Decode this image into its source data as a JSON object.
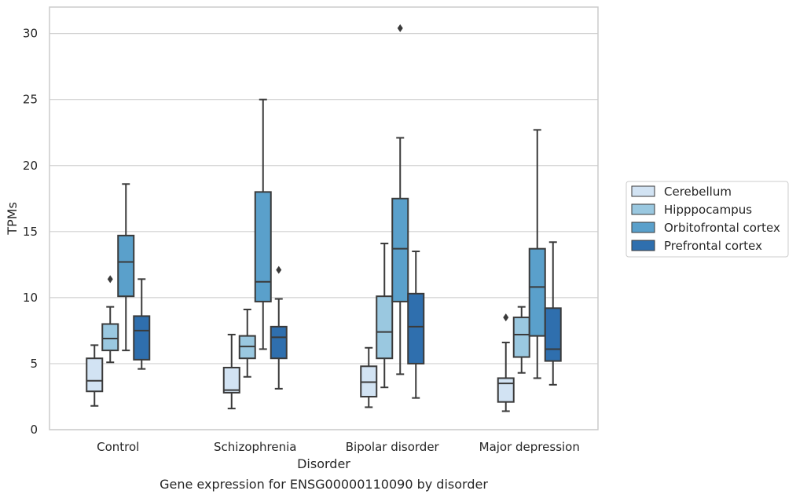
{
  "caption": "Gene expression for ENSG00000110090 by disorder",
  "chart_data": {
    "type": "boxplot",
    "xlabel": "Disorder",
    "ylabel": "TPMs",
    "ylim": [
      0,
      32
    ],
    "yticks": [
      0,
      5,
      10,
      15,
      20,
      25,
      30
    ],
    "grid": "horizontal",
    "legend_position": "right",
    "categories": [
      "Control",
      "Schizophrenia",
      "Bipolar disorder",
      "Major depression"
    ],
    "series": [
      {
        "name": "Cerebellum",
        "color": "#d2e3f3",
        "boxes": [
          {
            "whisker_low": 1.8,
            "q1": 2.9,
            "median": 3.7,
            "q3": 5.4,
            "whisker_high": 6.4,
            "outliers": []
          },
          {
            "whisker_low": 1.6,
            "q1": 2.8,
            "median": 3.0,
            "q3": 4.7,
            "whisker_high": 7.2,
            "outliers": []
          },
          {
            "whisker_low": 1.7,
            "q1": 2.5,
            "median": 3.6,
            "q3": 4.8,
            "whisker_high": 6.2,
            "outliers": []
          },
          {
            "whisker_low": 1.4,
            "q1": 2.1,
            "median": 3.5,
            "q3": 3.9,
            "whisker_high": 6.6,
            "outliers": [
              8.5
            ]
          }
        ]
      },
      {
        "name": "Hipppocampus",
        "color": "#9ac8e0",
        "boxes": [
          {
            "whisker_low": 5.1,
            "q1": 6.0,
            "median": 6.9,
            "q3": 8.0,
            "whisker_high": 9.3,
            "outliers": [
              11.4
            ]
          },
          {
            "whisker_low": 4.0,
            "q1": 5.4,
            "median": 6.3,
            "q3": 7.1,
            "whisker_high": 9.1,
            "outliers": []
          },
          {
            "whisker_low": 3.2,
            "q1": 5.4,
            "median": 7.4,
            "q3": 10.1,
            "whisker_high": 14.1,
            "outliers": []
          },
          {
            "whisker_low": 4.3,
            "q1": 5.5,
            "median": 7.2,
            "q3": 8.5,
            "whisker_high": 9.3,
            "outliers": []
          }
        ]
      },
      {
        "name": "Orbitofrontal cortex",
        "color": "#5aa0cb",
        "boxes": [
          {
            "whisker_low": 6.0,
            "q1": 10.1,
            "median": 12.7,
            "q3": 14.7,
            "whisker_high": 18.6,
            "outliers": []
          },
          {
            "whisker_low": 6.1,
            "q1": 9.7,
            "median": 11.2,
            "q3": 18.0,
            "whisker_high": 25.0,
            "outliers": []
          },
          {
            "whisker_low": 4.2,
            "q1": 9.7,
            "median": 13.7,
            "q3": 17.5,
            "whisker_high": 22.1,
            "outliers": [
              30.4
            ]
          },
          {
            "whisker_low": 3.9,
            "q1": 7.1,
            "median": 10.8,
            "q3": 13.7,
            "whisker_high": 22.7,
            "outliers": []
          }
        ]
      },
      {
        "name": "Prefrontal cortex",
        "color": "#2f6fae",
        "boxes": [
          {
            "whisker_low": 4.6,
            "q1": 5.3,
            "median": 7.5,
            "q3": 8.6,
            "whisker_high": 11.4,
            "outliers": []
          },
          {
            "whisker_low": 3.1,
            "q1": 5.4,
            "median": 7.0,
            "q3": 7.8,
            "whisker_high": 9.9,
            "outliers": [
              12.1
            ]
          },
          {
            "whisker_low": 2.4,
            "q1": 5.0,
            "median": 7.8,
            "q3": 10.3,
            "whisker_high": 13.5,
            "outliers": []
          },
          {
            "whisker_low": 3.4,
            "q1": 5.2,
            "median": 6.1,
            "q3": 9.2,
            "whisker_high": 14.2,
            "outliers": []
          }
        ]
      }
    ]
  }
}
